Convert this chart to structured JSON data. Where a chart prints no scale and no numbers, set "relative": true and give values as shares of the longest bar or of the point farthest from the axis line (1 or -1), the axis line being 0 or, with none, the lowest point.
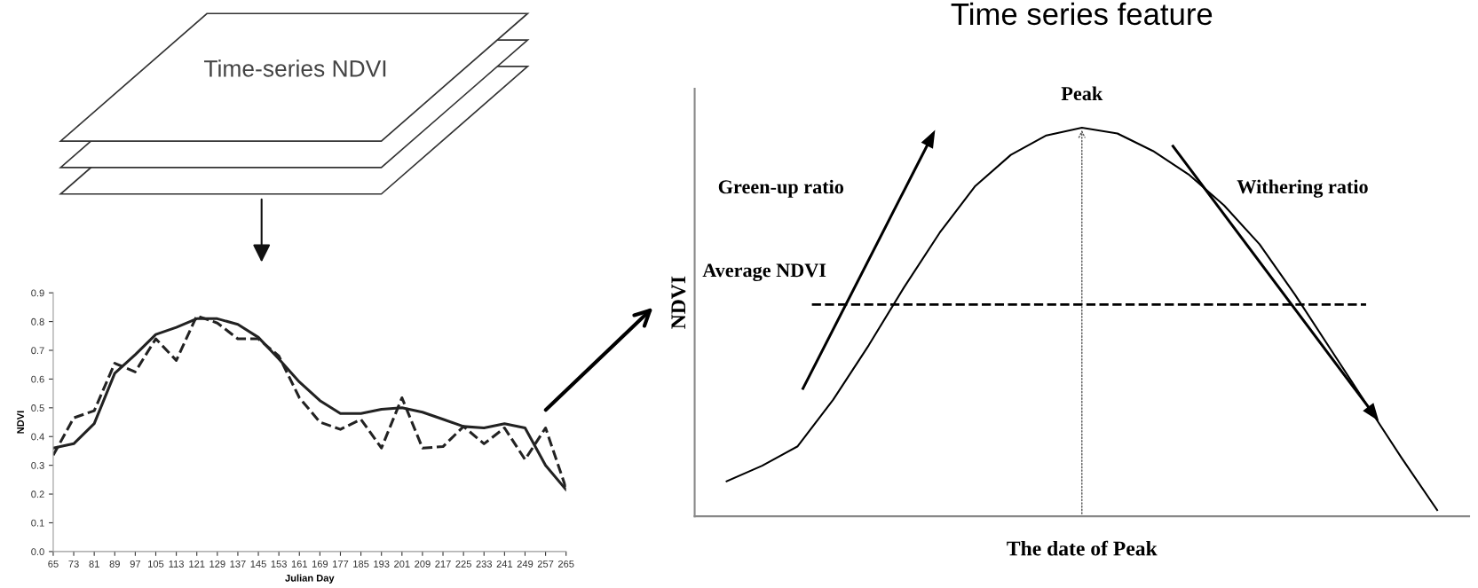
{
  "chart_data": [
    {
      "type": "line",
      "xlabel": "Julian Day",
      "ylabel": "NDVI",
      "annotations": [
        "Time-series NDVI"
      ],
      "categories": [
        "65",
        "73",
        "81",
        "89",
        "97",
        "105",
        "113",
        "121",
        "129",
        "137",
        "145",
        "153",
        "161",
        "169",
        "177",
        "185",
        "193",
        "201",
        "209",
        "217",
        "225",
        "233",
        "241",
        "249",
        "257",
        "265"
      ],
      "series": [
        {
          "color": "#222222",
          "line_style": "solid",
          "values": [
            0.36,
            0.375,
            0.445,
            0.62,
            0.685,
            0.755,
            0.78,
            0.81,
            0.81,
            0.79,
            0.745,
            0.67,
            0.59,
            0.525,
            0.48,
            0.48,
            0.495,
            0.5,
            0.485,
            0.46,
            0.435,
            0.43,
            0.445,
            0.43,
            0.3,
            0.215
          ]
        },
        {
          "color": "#222222",
          "line_style": "dashed",
          "values": [
            0.335,
            0.465,
            0.49,
            0.655,
            0.625,
            0.74,
            0.665,
            0.82,
            0.795,
            0.74,
            0.74,
            0.68,
            0.535,
            0.45,
            0.425,
            0.46,
            0.36,
            0.535,
            0.36,
            0.365,
            0.435,
            0.375,
            0.43,
            0.32,
            0.43,
            0.22
          ]
        }
      ],
      "ylim": [
        0,
        0.9
      ],
      "yticks": [
        {
          "value": 0,
          "label": "0.0"
        },
        0.1,
        0.2,
        0.3,
        0.4,
        0.5,
        0.6,
        0.7,
        0.8,
        0.9
      ],
      "grid": false,
      "legend": false,
      "marker": "none"
    },
    {
      "type": "line",
      "title": "Time series feature",
      "xlabel": "The date of Peak",
      "ylabel": "NDVI",
      "relative": true,
      "categories": [
        null,
        null,
        null,
        null,
        null,
        null,
        null,
        null,
        null,
        null,
        null,
        null,
        null,
        null,
        null,
        null,
        null,
        null,
        null,
        null,
        null
      ],
      "series": [
        {
          "color": "#000000",
          "line_style": "solid",
          "values": [
            0.09,
            0.13,
            0.18,
            0.3,
            0.44,
            0.59,
            0.73,
            0.85,
            0.93,
            0.98,
            1.0,
            0.985,
            0.94,
            0.88,
            0.8,
            0.7,
            0.57,
            0.43,
            0.29,
            0.15,
            0.016
          ]
        }
      ],
      "ref_lines": [
        {
          "axis": "y",
          "value": 0.545,
          "label": "Average NDVI",
          "color": "#000000",
          "line_style": "dashed"
        }
      ],
      "annotations": [
        "Peak",
        "Green-up ratio",
        "Withering ratio"
      ],
      "grid": false,
      "legend": false,
      "marker": "none"
    }
  ]
}
